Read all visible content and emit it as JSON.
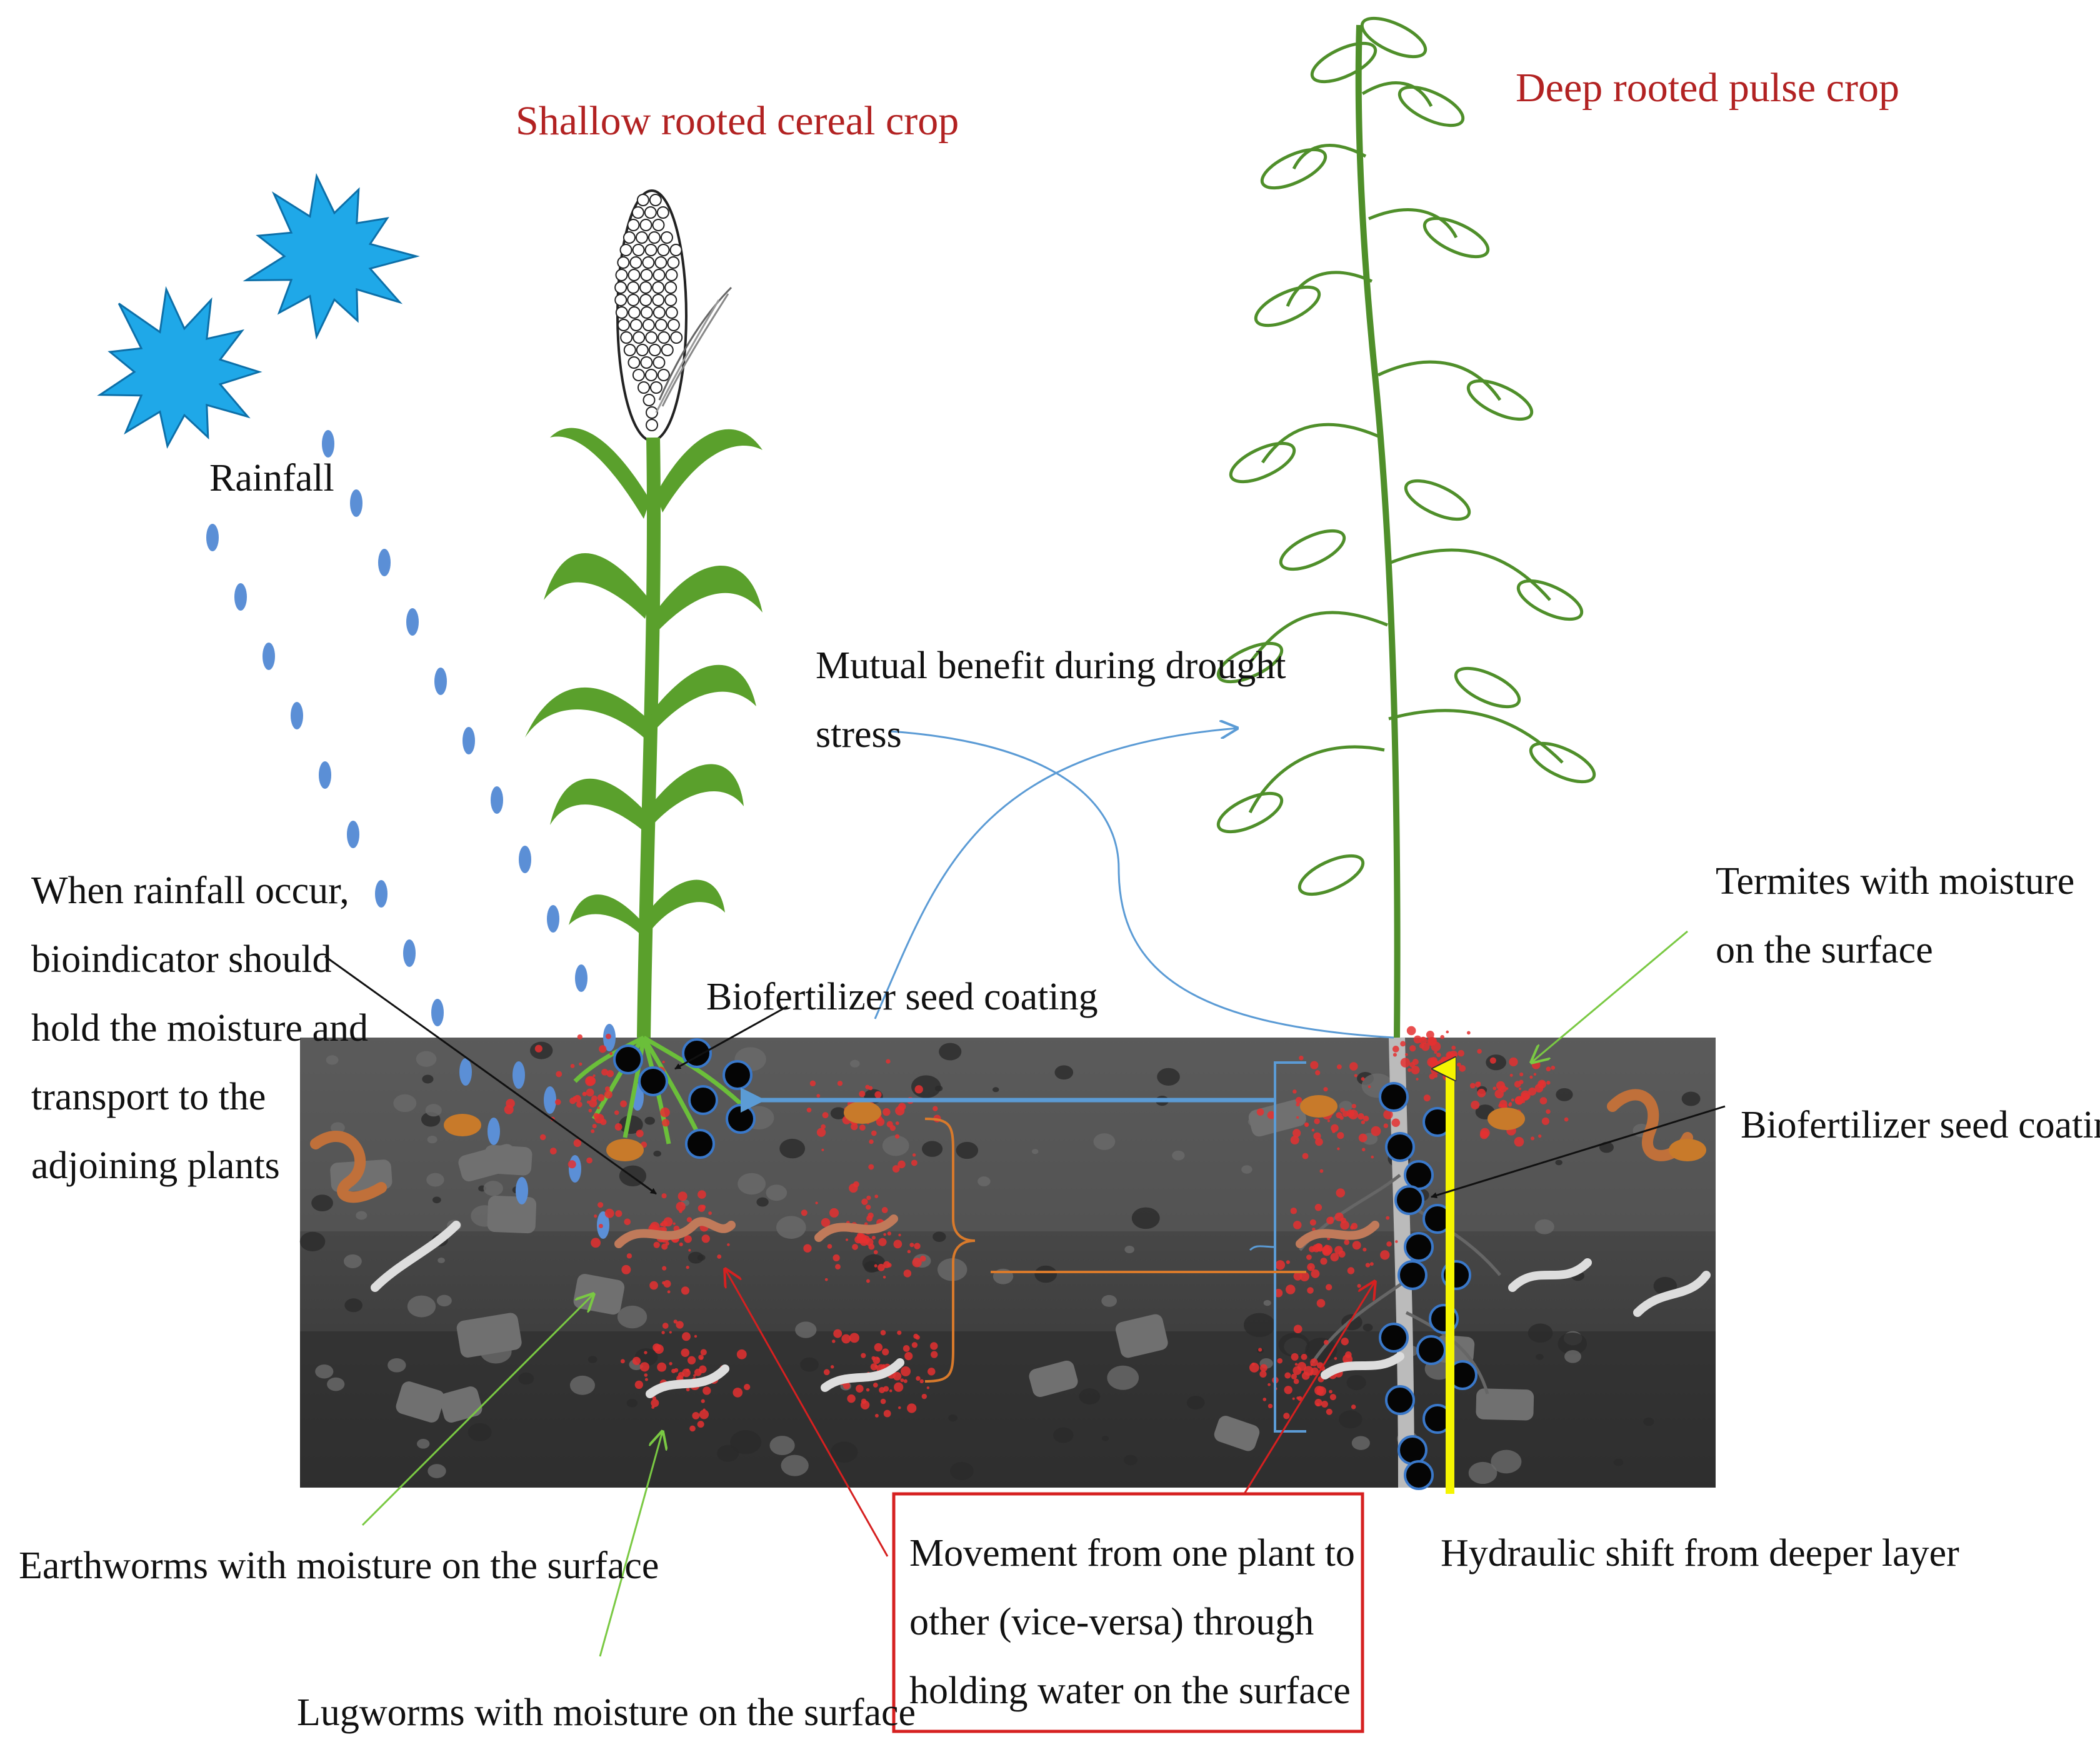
{
  "titles": {
    "cereal": "Shallow rooted cereal crop",
    "pulse": "Deep rooted pulse crop"
  },
  "labels": {
    "rainfall": "Rainfall",
    "mutual_line1": "Mutual benefit during drought",
    "mutual_line2": "stress",
    "when_line1": "When rainfall occur,",
    "when_line2": "bioindicator  should",
    "when_line3": "hold the moisture and",
    "when_line4": "transport to the",
    "when_line5": "adjoining plants",
    "biofert_left": "Biofertilizer seed coating",
    "biofert_right": "Biofertilizer seed coating",
    "termites_line1": "Termites with moisture",
    "termites_line2": "on the surface",
    "earthworms": "Earthworms with moisture on the surface",
    "lugworms": "Lugworms with moisture on the surface",
    "movement_line1": "Movement from one plant to",
    "movement_line2": "other  (vice-versa) through",
    "movement_line3": "holding water on the surface",
    "hydraulic": "Hydraulic shift from deeper layer"
  },
  "colors": {
    "title_red": "#b22222",
    "text": "#111111",
    "sun_blue": "#1fa8e8",
    "rain_blue": "#5b8fd6",
    "soil_dark": "#3a3a3a",
    "soil_mid": "#555555",
    "leaf_green": "#5aa02c",
    "pulse_green": "#4f8f2a",
    "arrow_blue": "#5b9bd5",
    "bracket_orange": "#d97a2b",
    "hydraulic_yellow": "#f5f500",
    "box_red": "#d62020",
    "pointer_green": "#7ac943",
    "moisture_red": "#e53030"
  }
}
